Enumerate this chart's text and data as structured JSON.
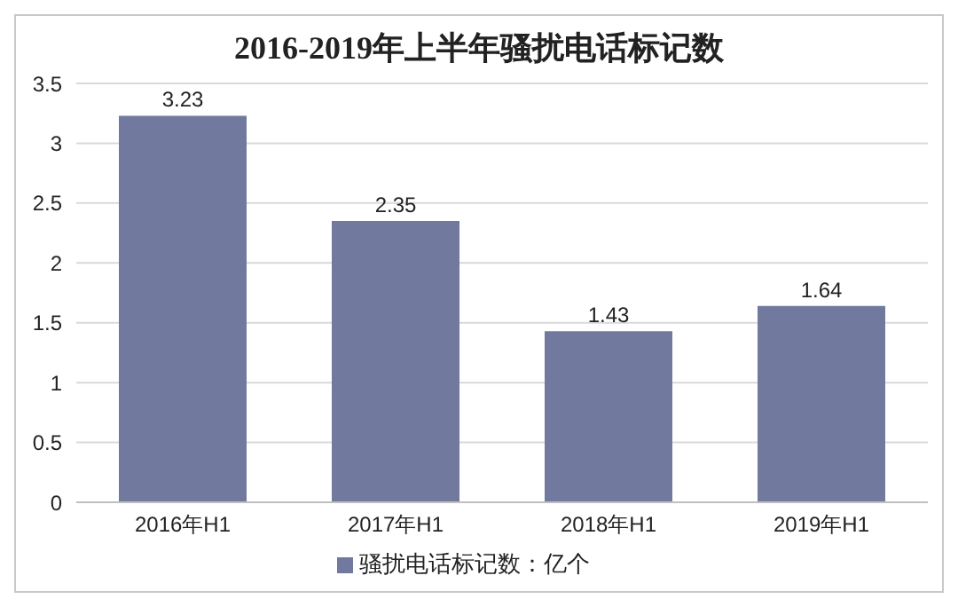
{
  "chart_data": {
    "type": "bar",
    "title": "2016-2019年上半年骚扰电话标记数",
    "categories": [
      "2016年H1",
      "2017年H1",
      "2018年H1",
      "2019年H1"
    ],
    "series": [
      {
        "name": "骚扰电话标记数：亿个",
        "color": "#717a9e",
        "values": [
          3.23,
          2.35,
          1.43,
          1.64
        ]
      }
    ],
    "ylim": [
      0,
      3.5
    ],
    "yticks": [
      0,
      0.5,
      1,
      1.5,
      2,
      2.5,
      3,
      3.5
    ],
    "grid": "y",
    "legend": "bottom",
    "data_labels": true
  }
}
